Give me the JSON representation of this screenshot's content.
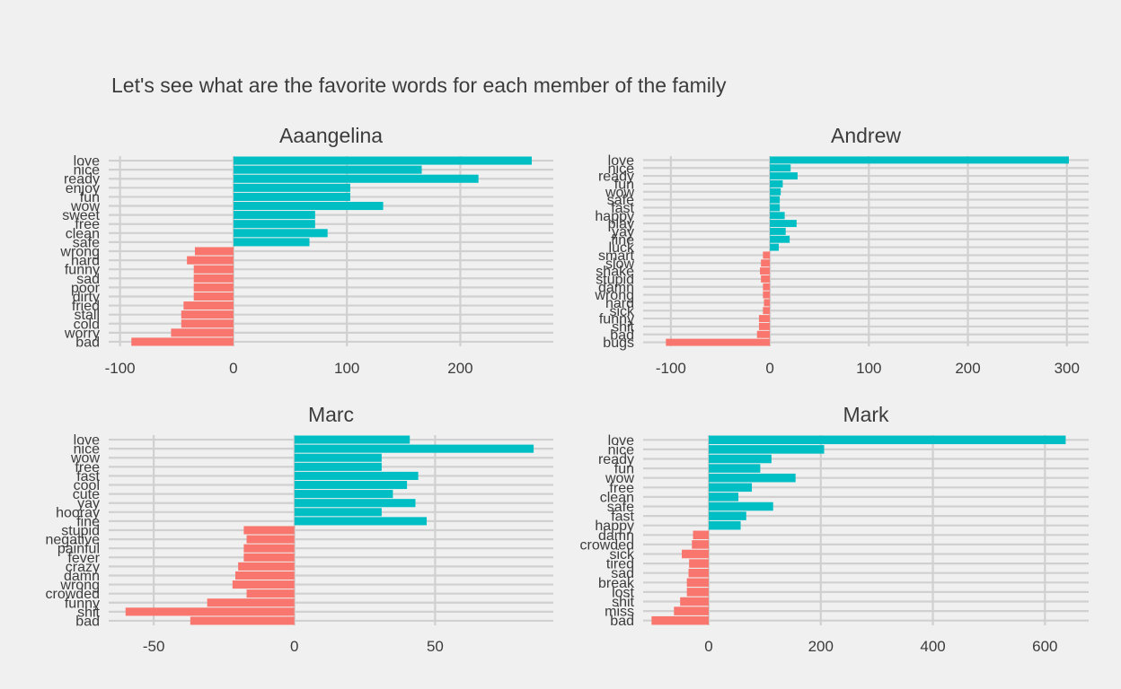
{
  "chart_title": "Let's see what are the favorite words for each member of the family",
  "colors": {
    "positive": "#00bfc4",
    "negative": "#f8766d",
    "grid": "#d0d0d0",
    "background": "#f0f0f0",
    "text": "#3c3c3c"
  },
  "chart_data": [
    {
      "type": "bar",
      "orientation": "horizontal",
      "title": "Aaangelina",
      "xlim": [
        -110,
        282
      ],
      "xticks": [
        -100,
        0,
        100,
        200
      ],
      "xtick_labels": [
        "-100",
        "0",
        "100",
        "200"
      ],
      "categories": [
        "love",
        "nice",
        "ready",
        "enjoy",
        "fun",
        "wow",
        "sweet",
        "free",
        "clean",
        "safe",
        "wrong",
        "hard",
        "funny",
        "sad",
        "poor",
        "dirty",
        "fried",
        "stall",
        "cold",
        "worry",
        "bad"
      ],
      "values": [
        263,
        166,
        216,
        103,
        103,
        132,
        72,
        72,
        83,
        67,
        -34,
        -41,
        -35,
        -35,
        -35,
        -35,
        -44,
        -46,
        -46,
        -55,
        -90
      ]
    },
    {
      "type": "bar",
      "orientation": "horizontal",
      "title": "Andrew",
      "xlim": [
        -128,
        322
      ],
      "xticks": [
        -100,
        0,
        100,
        200,
        300
      ],
      "xtick_labels": [
        "-100",
        "0",
        "100",
        "200",
        "300"
      ],
      "categories": [
        "love",
        "nice",
        "ready",
        "fun",
        "wow",
        "safe",
        "fast",
        "happy",
        "play",
        "yay",
        "fine",
        "luck",
        "smart",
        "slow",
        "shake",
        "stupid",
        "damn",
        "wrong",
        "hard",
        "sick",
        "funny",
        "shit",
        "bad",
        "bugs"
      ],
      "values": [
        302,
        21,
        28,
        13,
        11,
        10,
        10,
        15,
        27,
        16,
        20,
        9,
        -7,
        -9,
        -10,
        -9,
        -7,
        -7,
        -6,
        -7,
        -11,
        -11,
        -13,
        -105
      ]
    },
    {
      "type": "bar",
      "orientation": "horizontal",
      "title": "Marc",
      "xlim": [
        -66,
        92
      ],
      "xticks": [
        -50,
        0,
        50
      ],
      "xtick_labels": [
        "-50",
        "0",
        "50"
      ],
      "categories": [
        "love",
        "nice",
        "wow",
        "free",
        "fast",
        "cool",
        "cute",
        "yay",
        "hooray",
        "fine",
        "stupid",
        "negative",
        "painful",
        "fever",
        "crazy",
        "damn",
        "wrong",
        "crowded",
        "funny",
        "shit",
        "bad"
      ],
      "values": [
        41,
        85,
        31,
        31,
        44,
        40,
        35,
        43,
        31,
        47,
        -18,
        -17,
        -18,
        -18,
        -20,
        -21,
        -22,
        -17,
        -31,
        -60,
        -37
      ]
    },
    {
      "type": "bar",
      "orientation": "horizontal",
      "title": "Mark",
      "xlim": [
        -117,
        678
      ],
      "xticks": [
        0,
        200,
        400,
        600
      ],
      "xtick_labels": [
        "0",
        "200",
        "400",
        "600"
      ],
      "categories": [
        "love",
        "nice",
        "ready",
        "fun",
        "wow",
        "free",
        "clean",
        "safe",
        "fast",
        "happy",
        "damn",
        "crowded",
        "sick",
        "tired",
        "sad",
        "break",
        "lost",
        "shit",
        "miss",
        "bad"
      ],
      "values": [
        637,
        206,
        112,
        92,
        155,
        77,
        53,
        115,
        67,
        57,
        -28,
        -30,
        -48,
        -35,
        -36,
        -39,
        -39,
        -51,
        -62,
        -102
      ]
    }
  ]
}
